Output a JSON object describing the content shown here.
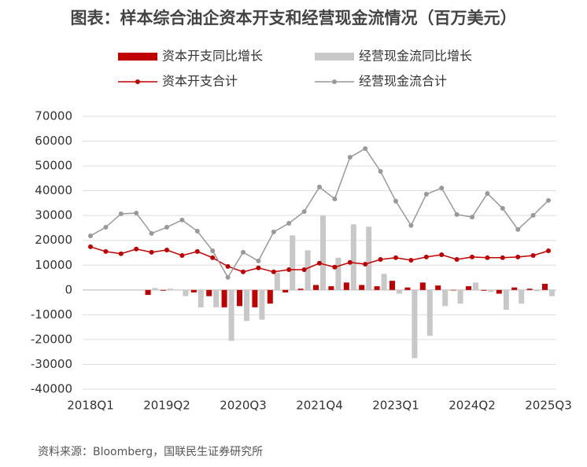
{
  "chart_data": {
    "type": "bar_line",
    "title": "图表：样本综合油企资本开支和经营现金流情况（百万美元）",
    "source": "资料来源：Bloomberg，国联民生证券研究所",
    "categories": [
      "2018Q1",
      null,
      null,
      null,
      null,
      "2019Q2",
      null,
      null,
      null,
      null,
      "2020Q3",
      null,
      null,
      null,
      null,
      "2021Q4",
      null,
      null,
      null,
      null,
      "2023Q1",
      null,
      null,
      null,
      null,
      "2024Q2",
      null,
      null,
      null,
      null,
      "2025Q3"
    ],
    "ylim": [
      -40000,
      70000
    ],
    "yticks": [
      -40000,
      -30000,
      -20000,
      -10000,
      0,
      10000,
      20000,
      30000,
      40000,
      50000,
      60000,
      70000
    ],
    "grid": true,
    "series": [
      {
        "name": "资本开支同比增长",
        "kind": "bar",
        "color": "#c00000",
        "values": [
          null,
          null,
          null,
          null,
          -2000,
          -300,
          0,
          -1000,
          -2500,
          -7000,
          -6500,
          -7000,
          -5500,
          -1000,
          500,
          2000,
          1500,
          3000,
          2000,
          1500,
          3700,
          1000,
          3000,
          1800,
          -200,
          1500,
          -300,
          -1500,
          1000,
          500,
          2500
        ]
      },
      {
        "name": "经营现金流同比增长",
        "kind": "bar",
        "color": "#c8c8c8",
        "values": [
          null,
          null,
          null,
          null,
          800,
          500,
          -2500,
          -7000,
          -7000,
          -20500,
          -12500,
          -12000,
          7000,
          22000,
          16000,
          30000,
          13000,
          26500,
          25500,
          6500,
          -1500,
          -27500,
          -18500,
          -6500,
          -5500,
          3000,
          -800,
          -8000,
          -5500,
          -500,
          -2500
        ]
      },
      {
        "name": "资本开支合计",
        "kind": "line",
        "color": "#c00000",
        "values": [
          17400,
          15500,
          14600,
          16500,
          15200,
          16100,
          13900,
          15500,
          13000,
          9500,
          7300,
          8900,
          7300,
          8200,
          8200,
          10800,
          9200,
          11100,
          10400,
          12300,
          13000,
          12000,
          13300,
          14200,
          12300,
          13300,
          13000,
          13000,
          13300,
          13900,
          15800
        ]
      },
      {
        "name": "经营现金流合计",
        "kind": "line",
        "color": "#999999",
        "values": [
          21800,
          25300,
          30700,
          31000,
          22800,
          25300,
          28200,
          23700,
          15800,
          5100,
          15200,
          11700,
          23400,
          26900,
          31600,
          41500,
          36700,
          53500,
          57000,
          47800,
          35800,
          26000,
          38600,
          41100,
          30400,
          29400,
          38900,
          32900,
          24400,
          30100,
          36100
        ]
      }
    ]
  }
}
